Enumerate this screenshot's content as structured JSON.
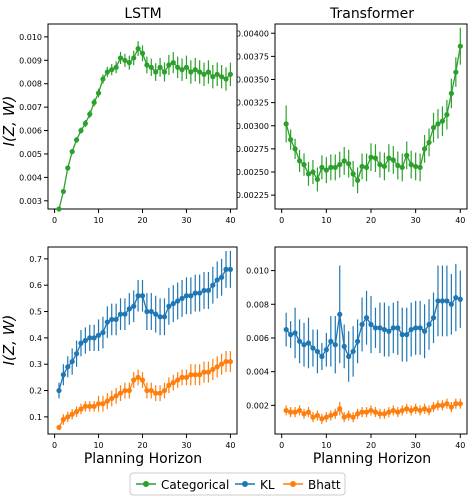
{
  "chart_data": [
    {
      "type": "line",
      "title": "LSTM",
      "xlabel": "",
      "ylabel": "I(Z, W)",
      "xlim": [
        -1.5,
        41.5
      ],
      "ylim": [
        0.00265,
        0.01055
      ],
      "xticks": [
        0,
        10,
        20,
        30,
        40
      ],
      "yticks": [
        0.003,
        0.004,
        0.005,
        0.006,
        0.007,
        0.008,
        0.009,
        0.01
      ],
      "ytick_labels": [
        "0.003",
        "0.004",
        "0.005",
        "0.006",
        "0.007",
        "0.008",
        "0.009",
        "0.010"
      ],
      "x": [
        1,
        2,
        3,
        4,
        5,
        6,
        7,
        8,
        9,
        10,
        11,
        12,
        13,
        14,
        15,
        16,
        17,
        18,
        19,
        20,
        21,
        22,
        23,
        24,
        25,
        26,
        27,
        28,
        29,
        30,
        31,
        32,
        33,
        34,
        35,
        36,
        37,
        38,
        39,
        40
      ],
      "series": [
        {
          "name": "Categorical",
          "color": "#2ca02c",
          "values": [
            0.00265,
            0.0034,
            0.0044,
            0.0051,
            0.0056,
            0.006,
            0.0063,
            0.0067,
            0.0072,
            0.0076,
            0.0082,
            0.0085,
            0.0086,
            0.0087,
            0.0091,
            0.009,
            0.0089,
            0.0091,
            0.0095,
            0.0093,
            0.0088,
            0.0087,
            0.0085,
            0.0087,
            0.0085,
            0.0088,
            0.0089,
            0.0087,
            0.0086,
            0.0087,
            0.0085,
            0.0086,
            0.0085,
            0.0084,
            0.0085,
            0.0083,
            0.0084,
            0.0083,
            0.0082,
            0.0084
          ],
          "errors": [
            5e-05,
            7e-05,
            8e-05,
            0.0001,
            0.00012,
            0.00013,
            0.00015,
            0.00016,
            0.00017,
            0.00019,
            0.0002,
            0.00022,
            0.00024,
            0.00025,
            0.00026,
            0.00028,
            0.0003,
            0.00031,
            0.00032,
            0.00034,
            0.00036,
            0.00037,
            0.00038,
            0.0004,
            0.00041,
            0.00043,
            0.00045,
            0.00046,
            0.00048,
            0.0005,
            0.0005,
            0.0005,
            0.0005,
            0.0005,
            0.0005,
            0.0005,
            0.0005,
            0.0005,
            0.0005,
            0.0005
          ]
        }
      ]
    },
    {
      "type": "line",
      "title": "Transformer",
      "xlabel": "",
      "ylabel": "",
      "xlim": [
        -1.5,
        41.5
      ],
      "ylim": [
        0.0021,
        0.0041
      ],
      "xticks": [
        0,
        10,
        20,
        30,
        40
      ],
      "yticks": [
        0.00225,
        0.0025,
        0.00275,
        0.003,
        0.00325,
        0.0035,
        0.00375,
        0.004
      ],
      "ytick_labels": [
        "0.00225",
        "0.00250",
        "0.00275",
        "0.00300",
        "0.00325",
        "0.00350",
        "0.00375",
        "0.00400"
      ],
      "x": [
        1,
        2,
        3,
        4,
        5,
        6,
        7,
        8,
        9,
        10,
        11,
        12,
        13,
        14,
        15,
        16,
        17,
        18,
        19,
        20,
        21,
        22,
        23,
        24,
        25,
        26,
        27,
        28,
        29,
        30,
        31,
        32,
        33,
        34,
        35,
        36,
        37,
        38,
        39,
        40
      ],
      "series": [
        {
          "name": "Categorical",
          "color": "#2ca02c",
          "values": [
            0.00302,
            0.00285,
            0.00275,
            0.00262,
            0.00258,
            0.00248,
            0.0025,
            0.00242,
            0.00255,
            0.00252,
            0.00255,
            0.00255,
            0.00258,
            0.00262,
            0.00259,
            0.00248,
            0.00241,
            0.00256,
            0.00255,
            0.00266,
            0.00265,
            0.00258,
            0.00256,
            0.00265,
            0.00263,
            0.00257,
            0.00255,
            0.00268,
            0.00258,
            0.00256,
            0.00255,
            0.00275,
            0.00282,
            0.00298,
            0.00302,
            0.00305,
            0.00312,
            0.00335,
            0.00358,
            0.00386
          ],
          "errors": [
            0.0002,
            0.00011,
            0.00011,
            0.00012,
            0.00012,
            0.00013,
            0.00013,
            0.00013,
            0.00013,
            0.00014,
            0.00014,
            0.00014,
            0.00014,
            0.00015,
            0.00015,
            0.00014,
            0.00014,
            0.00014,
            0.00015,
            0.00015,
            0.00015,
            0.00014,
            0.00015,
            0.00015,
            0.00015,
            0.00015,
            0.00015,
            0.00015,
            0.00015,
            0.00015,
            0.00015,
            0.00015,
            0.00015,
            0.00016,
            0.00016,
            0.00016,
            0.00016,
            0.00016,
            0.00016,
            0.0002
          ]
        }
      ]
    },
    {
      "type": "line",
      "title": "",
      "xlabel": "Planning Horizon",
      "ylabel": "I(Z, W)",
      "xlim": [
        -1.5,
        41.5
      ],
      "ylim": [
        0.035,
        0.745
      ],
      "xticks": [
        0,
        10,
        20,
        30,
        40
      ],
      "yticks": [
        0.1,
        0.2,
        0.3,
        0.4,
        0.5,
        0.6,
        0.7
      ],
      "ytick_labels": [
        "0.1",
        "0.2",
        "0.3",
        "0.4",
        "0.5",
        "0.6",
        "0.7"
      ],
      "x": [
        1,
        2,
        3,
        4,
        5,
        6,
        7,
        8,
        9,
        10,
        11,
        12,
        13,
        14,
        15,
        16,
        17,
        18,
        19,
        20,
        21,
        22,
        23,
        24,
        25,
        26,
        27,
        28,
        29,
        30,
        31,
        32,
        33,
        34,
        35,
        36,
        37,
        38,
        39,
        40
      ],
      "series": [
        {
          "name": "KL",
          "color": "#1f77b4",
          "values": [
            0.2,
            0.26,
            0.29,
            0.31,
            0.34,
            0.38,
            0.39,
            0.4,
            0.4,
            0.41,
            0.42,
            0.46,
            0.47,
            0.47,
            0.49,
            0.49,
            0.51,
            0.52,
            0.56,
            0.56,
            0.5,
            0.5,
            0.49,
            0.48,
            0.48,
            0.52,
            0.53,
            0.54,
            0.55,
            0.56,
            0.56,
            0.57,
            0.57,
            0.58,
            0.58,
            0.6,
            0.62,
            0.63,
            0.66,
            0.66
          ],
          "errors": [
            0.03,
            0.04,
            0.04,
            0.05,
            0.05,
            0.05,
            0.05,
            0.05,
            0.05,
            0.06,
            0.06,
            0.06,
            0.06,
            0.06,
            0.06,
            0.06,
            0.06,
            0.06,
            0.06,
            0.06,
            0.07,
            0.07,
            0.07,
            0.07,
            0.07,
            0.07,
            0.07,
            0.07,
            0.07,
            0.07,
            0.07,
            0.07,
            0.07,
            0.07,
            0.07,
            0.07,
            0.07,
            0.07,
            0.07,
            0.07
          ]
        },
        {
          "name": "Bhatt",
          "color": "#ff7f0e",
          "values": [
            0.06,
            0.09,
            0.1,
            0.11,
            0.12,
            0.13,
            0.14,
            0.14,
            0.14,
            0.15,
            0.15,
            0.16,
            0.17,
            0.18,
            0.19,
            0.2,
            0.2,
            0.24,
            0.25,
            0.24,
            0.2,
            0.2,
            0.19,
            0.19,
            0.2,
            0.22,
            0.23,
            0.24,
            0.25,
            0.25,
            0.26,
            0.26,
            0.26,
            0.27,
            0.27,
            0.28,
            0.29,
            0.3,
            0.31,
            0.31
          ],
          "errors": [
            0.01,
            0.02,
            0.02,
            0.02,
            0.02,
            0.02,
            0.02,
            0.02,
            0.02,
            0.03,
            0.03,
            0.03,
            0.03,
            0.03,
            0.03,
            0.03,
            0.03,
            0.03,
            0.03,
            0.03,
            0.03,
            0.03,
            0.03,
            0.03,
            0.03,
            0.03,
            0.03,
            0.03,
            0.03,
            0.03,
            0.04,
            0.04,
            0.04,
            0.04,
            0.04,
            0.04,
            0.04,
            0.04,
            0.04,
            0.04
          ]
        }
      ]
    },
    {
      "type": "line",
      "title": "",
      "xlabel": "Planning Horizon",
      "ylabel": "",
      "xlim": [
        -1.5,
        41.5
      ],
      "ylim": [
        0.0003,
        0.0114
      ],
      "xticks": [
        0,
        10,
        20,
        30,
        40
      ],
      "yticks": [
        0.002,
        0.004,
        0.006,
        0.008,
        0.01
      ],
      "ytick_labels": [
        "0.002",
        "0.004",
        "0.006",
        "0.008",
        "0.010"
      ],
      "x": [
        1,
        2,
        3,
        4,
        5,
        6,
        7,
        8,
        9,
        10,
        11,
        12,
        13,
        14,
        15,
        16,
        17,
        18,
        19,
        20,
        21,
        22,
        23,
        24,
        25,
        26,
        27,
        28,
        29,
        30,
        31,
        32,
        33,
        34,
        35,
        36,
        37,
        38,
        39,
        40
      ],
      "series": [
        {
          "name": "KL",
          "color": "#1f77b4",
          "values": [
            0.0065,
            0.0062,
            0.0063,
            0.0058,
            0.0056,
            0.0057,
            0.0054,
            0.0052,
            0.0049,
            0.0053,
            0.0058,
            0.0056,
            0.0074,
            0.0055,
            0.0049,
            0.0052,
            0.0058,
            0.0068,
            0.0072,
            0.0068,
            0.0066,
            0.0066,
            0.0065,
            0.0064,
            0.0066,
            0.0066,
            0.0062,
            0.0062,
            0.0065,
            0.0066,
            0.0066,
            0.0064,
            0.0068,
            0.0072,
            0.0082,
            0.0082,
            0.0082,
            0.008,
            0.0084,
            0.0083
          ],
          "errors": [
            0.001,
            0.0008,
            0.0015,
            0.0013,
            0.0013,
            0.0015,
            0.0011,
            0.0013,
            0.0008,
            0.001,
            0.0015,
            0.0017,
            0.0029,
            0.0013,
            0.0015,
            0.0015,
            0.0013,
            0.0016,
            0.0016,
            0.0017,
            0.0012,
            0.0015,
            0.0016,
            0.0015,
            0.0015,
            0.0016,
            0.0016,
            0.0016,
            0.0016,
            0.0016,
            0.0016,
            0.0016,
            0.0015,
            0.0015,
            0.0021,
            0.0021,
            0.0021,
            0.0018,
            0.002,
            0.0017
          ]
        },
        {
          "name": "Bhatt",
          "color": "#ff7f0e",
          "values": [
            0.0017,
            0.0016,
            0.0016,
            0.0017,
            0.0015,
            0.0016,
            0.0013,
            0.0014,
            0.0012,
            0.0013,
            0.0014,
            0.0015,
            0.0018,
            0.0013,
            0.0014,
            0.0013,
            0.0015,
            0.0016,
            0.0016,
            0.0017,
            0.0016,
            0.0015,
            0.0015,
            0.0016,
            0.0017,
            0.0016,
            0.0017,
            0.0018,
            0.0017,
            0.0018,
            0.0017,
            0.0018,
            0.0017,
            0.0019,
            0.002,
            0.002,
            0.0021,
            0.0019,
            0.0021,
            0.0021
          ],
          "errors": [
            0.0003,
            0.0003,
            0.0003,
            0.0003,
            0.0003,
            0.0003,
            0.0003,
            0.0003,
            0.0003,
            0.0003,
            0.0003,
            0.0003,
            0.0004,
            0.0003,
            0.0003,
            0.0003,
            0.0003,
            0.0003,
            0.0003,
            0.0003,
            0.0003,
            0.0003,
            0.0003,
            0.0003,
            0.0003,
            0.0003,
            0.0003,
            0.0003,
            0.0003,
            0.0003,
            0.0003,
            0.0003,
            0.0003,
            0.0003,
            0.0003,
            0.0003,
            0.0003,
            0.0003,
            0.0003,
            0.0003
          ]
        }
      ]
    }
  ],
  "legend": {
    "placement": "bottom-center",
    "entries": [
      {
        "name": "Categorical",
        "color": "#2ca02c"
      },
      {
        "name": "KL",
        "color": "#1f77b4"
      },
      {
        "name": "Bhatt",
        "color": "#ff7f0e"
      }
    ]
  }
}
